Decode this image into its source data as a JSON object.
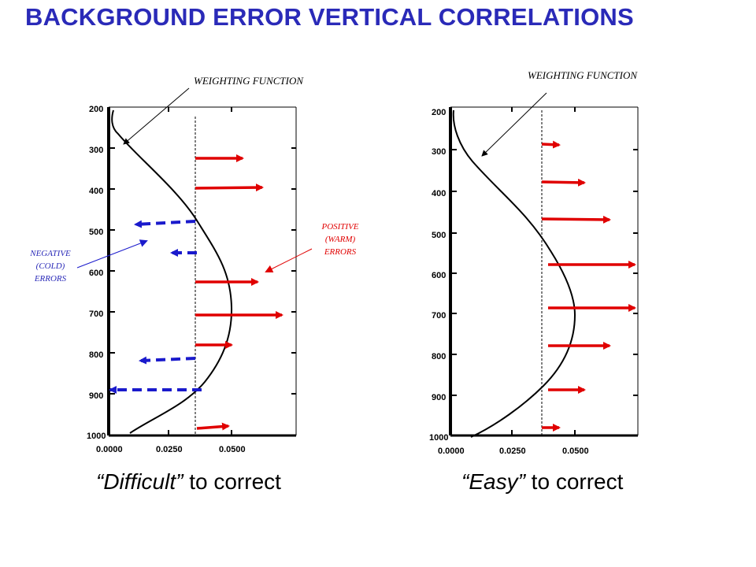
{
  "title": "BACKGROUND ERROR VERTICAL CORRELATIONS",
  "panels": [
    {
      "id": "difficult",
      "caption_quoted": "“Difficult”",
      "caption_rest": " to correct",
      "weighting_label": "WEIGHTING FUNCTION",
      "y_ticks": [
        "200",
        "300",
        "400",
        "500",
        "600",
        "700",
        "800",
        "900",
        "1000"
      ],
      "x_ticks": [
        "0.0000",
        "0.0250",
        "0.0500"
      ],
      "negative_label": [
        "NEGATIVE",
        "(COLD)",
        "ERRORS"
      ],
      "positive_label": [
        "POSITIVE",
        "(WARM)",
        "ERRORS"
      ]
    },
    {
      "id": "easy",
      "caption_quoted": "“Easy”",
      "caption_rest": " to correct",
      "weighting_label": "WEIGHTING FUNCTION",
      "y_ticks": [
        "200",
        "300",
        "400",
        "500",
        "600",
        "700",
        "800",
        "900",
        "1000"
      ],
      "x_ticks": [
        "0.0000",
        "0.0250",
        "0.0500"
      ]
    }
  ],
  "colors": {
    "title": "#2a2ab8",
    "positive": "#e00000",
    "negative": "#1a1acc"
  }
}
